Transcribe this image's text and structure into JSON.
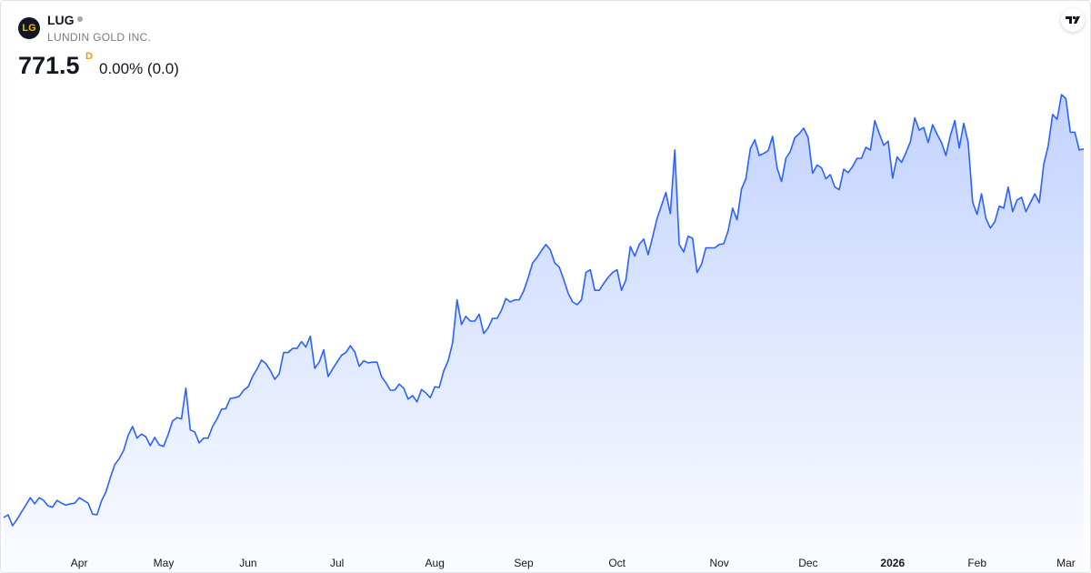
{
  "header": {
    "logo": "LG",
    "symbol": "LUG",
    "name": "LUNDIN GOLD INC.",
    "price": "771.5",
    "interval": "D",
    "change": "0.00% (0.0)"
  },
  "chart_data": {
    "type": "area",
    "color": "#2962ff",
    "values": [
      233,
      237,
      221,
      230,
      241,
      251,
      262,
      253,
      262,
      258,
      250,
      248,
      258,
      254,
      251,
      253,
      254,
      262,
      258,
      254,
      238,
      237,
      257,
      270,
      291,
      310,
      319,
      331,
      353,
      366,
      349,
      355,
      351,
      338,
      350,
      339,
      337,
      354,
      374,
      379,
      377,
      422,
      361,
      358,
      342,
      349,
      349,
      366,
      377,
      391,
      392,
      407,
      408,
      410,
      419,
      424,
      439,
      450,
      463,
      458,
      448,
      435,
      443,
      474,
      474,
      480,
      480,
      490,
      482,
      498,
      451,
      460,
      478,
      439,
      450,
      460,
      470,
      474,
      484,
      475,
      454,
      462,
      459,
      460,
      460,
      439,
      430,
      419,
      419,
      428,
      422,
      406,
      411,
      402,
      420,
      415,
      408,
      424,
      423,
      447,
      462,
      488,
      551,
      515,
      527,
      520,
      520,
      530,
      502,
      510,
      524,
      524,
      536,
      553,
      548,
      551,
      551,
      564,
      583,
      605,
      613,
      623,
      632,
      624,
      605,
      599,
      581,
      561,
      548,
      544,
      551,
      591,
      595,
      565,
      565,
      575,
      584,
      591,
      595,
      565,
      580,
      629,
      615,
      632,
      640,
      617,
      643,
      670,
      689,
      708,
      677,
      770,
      632,
      621,
      644,
      641,
      591,
      603,
      627,
      627,
      627,
      632,
      633,
      652,
      685,
      668,
      713,
      728,
      772,
      785,
      762,
      765,
      769,
      790,
      744,
      724,
      758,
      768,
      788,
      794,
      802,
      788,
      736,
      748,
      744,
      728,
      734,
      716,
      712,
      742,
      737,
      746,
      758,
      758,
      774,
      770,
      813,
      794,
      777,
      783,
      729,
      760,
      752,
      766,
      782,
      817,
      799,
      803,
      781,
      807,
      793,
      781,
      762,
      791,
      813,
      773,
      809,
      781,
      694,
      676,
      706,
      670,
      656,
      665,
      688,
      685,
      716,
      680,
      697,
      701,
      680,
      693,
      706,
      693,
      749,
      776,
      822,
      815,
      851,
      845,
      796,
      796,
      770,
      771.5
    ],
    "xlim": [
      0,
      243
    ],
    "xticks": [
      {
        "value": 17,
        "label": "Apr"
      },
      {
        "value": 36,
        "label": "May"
      },
      {
        "value": 55,
        "label": "Jun"
      },
      {
        "value": 75,
        "label": "Jul"
      },
      {
        "value": 97,
        "label": "Aug"
      },
      {
        "value": 117,
        "label": "Sep"
      },
      {
        "value": 138,
        "label": "Oct"
      },
      {
        "value": 161,
        "label": "Nov"
      },
      {
        "value": 181,
        "label": "Dec"
      },
      {
        "value": 200,
        "label": "2026"
      },
      {
        "value": 219,
        "label": "Feb"
      },
      {
        "value": 239,
        "label": "Mar"
      }
    ]
  }
}
